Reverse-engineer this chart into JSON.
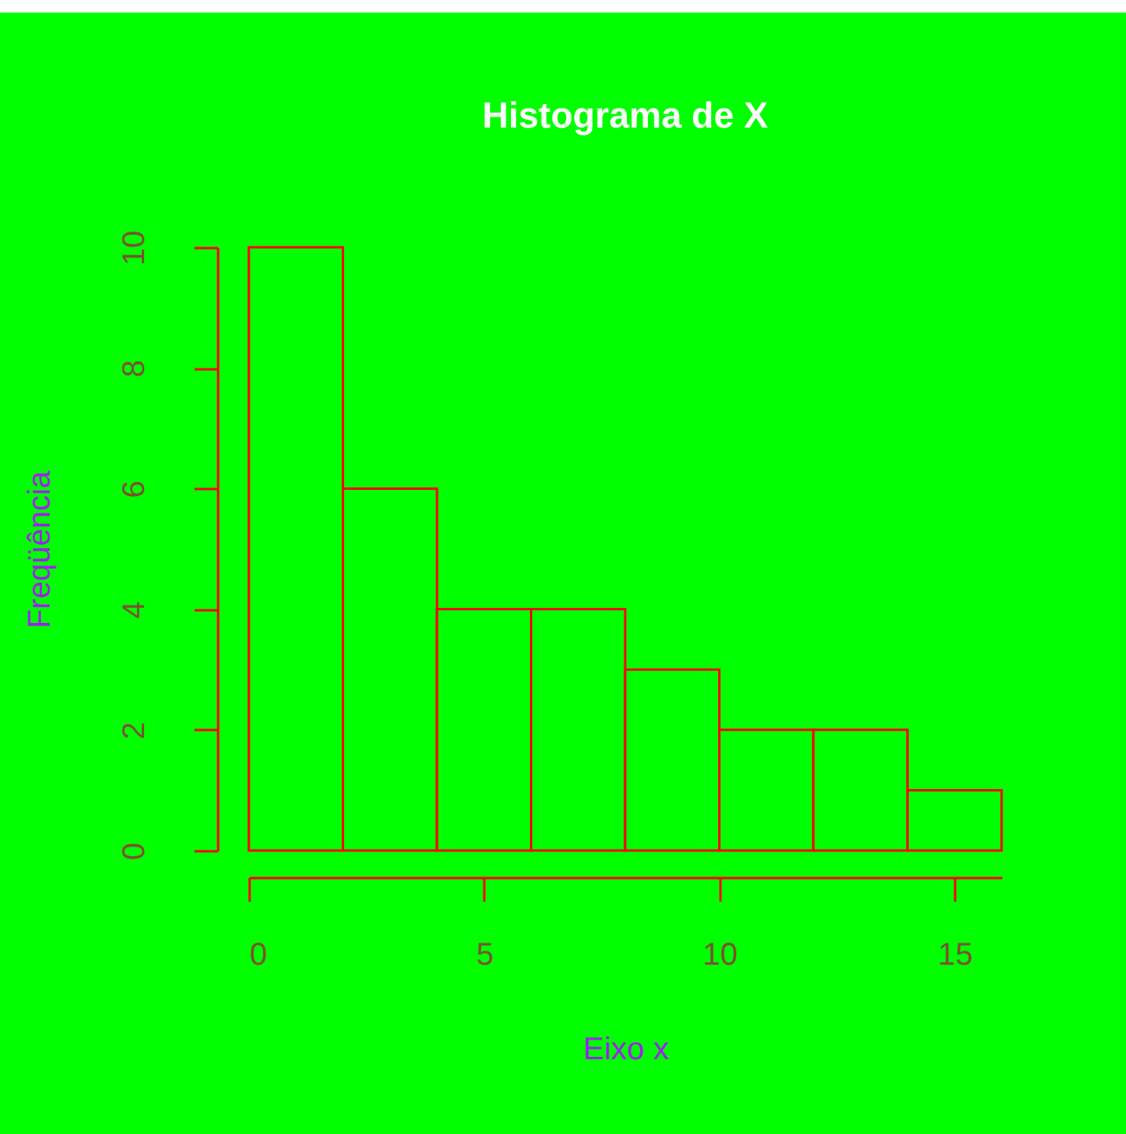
{
  "chart_data": {
    "type": "histogram",
    "title": "Histograma de X",
    "xlabel": "Eixo x",
    "ylabel": "Freqüência",
    "bins": [
      0,
      2,
      4,
      6,
      8,
      10,
      12,
      14,
      16
    ],
    "values": [
      10,
      6,
      4,
      4,
      3,
      2,
      2,
      1
    ],
    "color": "#ff0000",
    "xlim": [
      0,
      16
    ],
    "xticks": [
      0,
      5,
      10,
      15
    ],
    "ylim": [
      0,
      10
    ],
    "yticks": [
      0,
      2,
      4,
      6,
      8,
      10
    ]
  }
}
